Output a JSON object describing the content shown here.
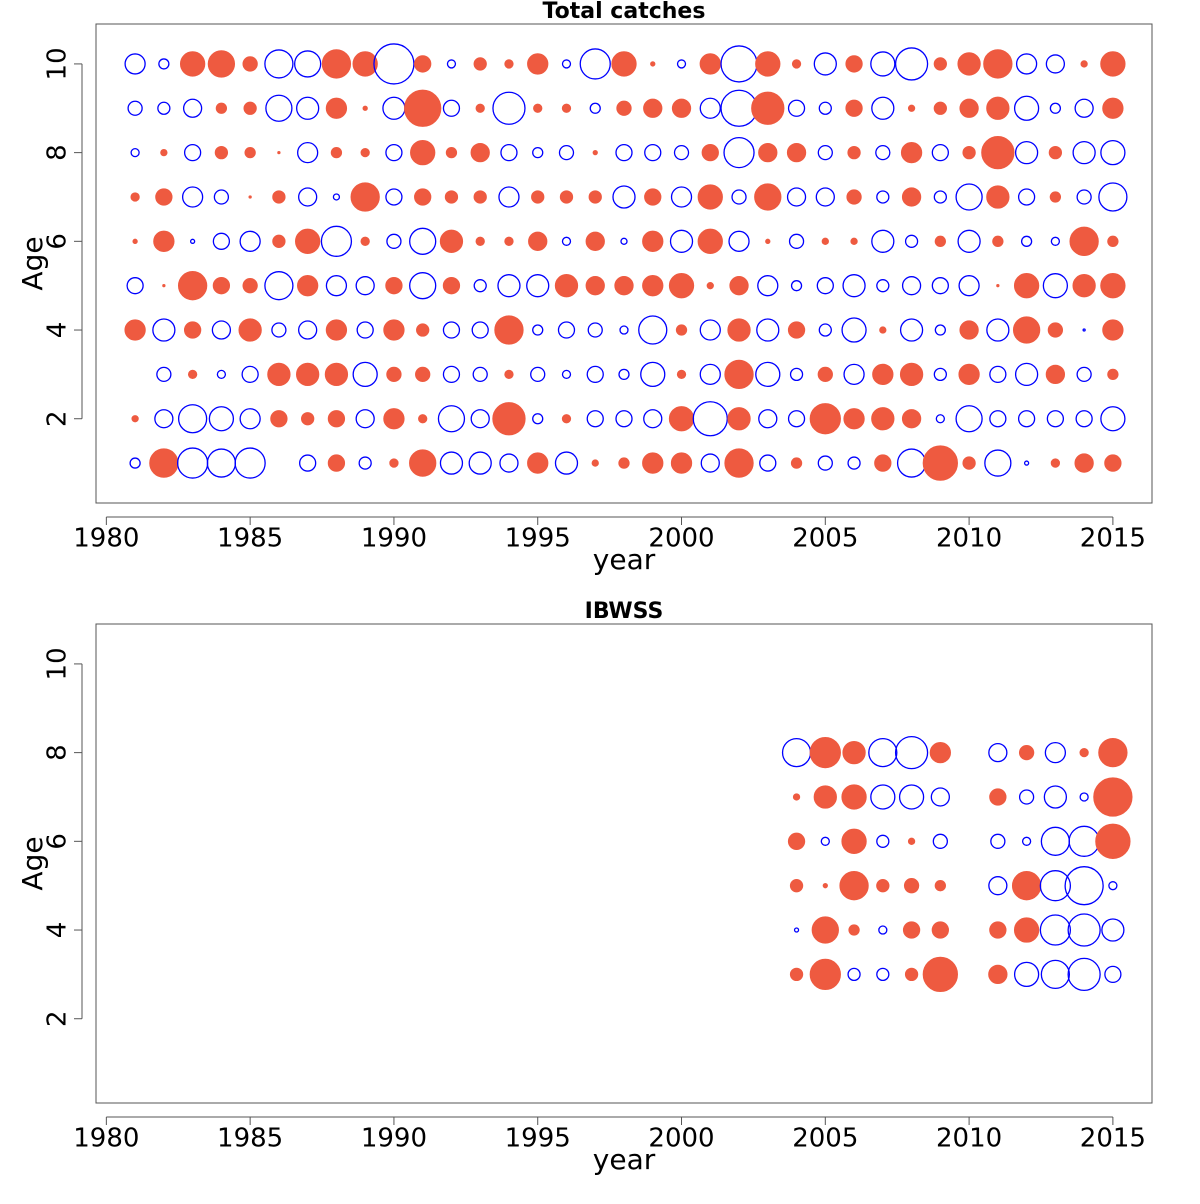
{
  "chart_data": [
    {
      "type": "bubble",
      "title": "Total catches",
      "xlabel": "year",
      "ylabel": "Age",
      "positive_color": "#ee5a40",
      "negative_color": "#0000ff",
      "xlim": [
        1979.64,
        2016.36
      ],
      "ylim": [
        0.1,
        10.9
      ],
      "xticks": [
        1980,
        1985,
        1990,
        1995,
        2000,
        2005,
        2010,
        2015
      ],
      "yticks": [
        2,
        4,
        6,
        8,
        10
      ],
      "x": [
        1981,
        1982,
        1983,
        1984,
        1985,
        1986,
        1987,
        1988,
        1989,
        1990,
        1991,
        1992,
        1993,
        1994,
        1995,
        1996,
        1997,
        1998,
        1999,
        2000,
        2001,
        2002,
        2003,
        2004,
        2005,
        2006,
        2007,
        2008,
        2009,
        2010,
        2011,
        2012,
        2013,
        2014,
        2015
      ],
      "y": [
        1,
        2,
        3,
        4,
        5,
        6,
        7,
        8,
        9,
        10
      ],
      "values": [
        [
          -0.5,
          1.4,
          -1.5,
          -1.4,
          -1.5,
          0,
          -0.8,
          0.8,
          -0.6,
          0.4,
          1.3,
          -1.1,
          -1.1,
          -0.9,
          1.0,
          -1.1,
          0.3,
          0.5,
          1.0,
          1.0,
          -0.9,
          1.4,
          -0.8,
          0.5,
          -0.7,
          -0.6,
          0.8,
          -1.4,
          1.7,
          0.6,
          -1.3,
          -0.2,
          0.4,
          0.9,
          0.8
        ],
        [
          0.3,
          -0.9,
          -1.4,
          -1.2,
          -1.0,
          0.8,
          0.6,
          0.8,
          -0.9,
          1.0,
          0.4,
          -1.3,
          -0.9,
          1.6,
          -0.5,
          0.4,
          -0.8,
          -0.8,
          -0.9,
          1.2,
          -1.7,
          1.1,
          -0.9,
          -0.8,
          1.5,
          1.0,
          1.1,
          0.9,
          -0.4,
          -1.3,
          -0.8,
          -0.8,
          -0.8,
          -0.8,
          -1.2
        ],
        [
          0,
          -0.7,
          0.4,
          -0.4,
          -0.8,
          1.1,
          1.1,
          1.1,
          -1.2,
          0.7,
          0.7,
          -0.8,
          -0.7,
          0.4,
          -0.7,
          -0.4,
          -0.8,
          -0.5,
          -1.2,
          0.4,
          -1.0,
          1.4,
          -1.2,
          -0.6,
          0.7,
          -1.0,
          1.0,
          1.1,
          -0.6,
          1.0,
          -0.8,
          -1.1,
          0.9,
          -0.7,
          0.5
        ],
        [
          1.0,
          -1.1,
          0.8,
          -0.9,
          1.1,
          -0.7,
          -0.9,
          1.0,
          -0.8,
          1.0,
          0.6,
          -0.8,
          -0.8,
          1.4,
          -0.5,
          -0.8,
          -0.7,
          -0.4,
          -1.4,
          0.5,
          -1.0,
          1.1,
          -1.1,
          0.8,
          -0.6,
          -1.2,
          0.3,
          -1.1,
          -0.5,
          0.9,
          -1.1,
          1.3,
          0.7,
          -0.1,
          1.0
        ],
        [
          -0.8,
          0.1,
          1.4,
          0.8,
          0.7,
          -1.4,
          1.0,
          -1.0,
          -0.9,
          0.8,
          -1.3,
          0.8,
          -0.6,
          -1.1,
          -1.1,
          1.1,
          0.9,
          0.9,
          1.0,
          1.2,
          0.3,
          0.9,
          -1.0,
          -0.5,
          -0.8,
          -1.1,
          -0.6,
          -0.9,
          -0.8,
          -1.0,
          0.1,
          1.2,
          -1.2,
          1.1,
          1.2
        ],
        [
          0.2,
          1.0,
          -0.2,
          -0.8,
          -1.0,
          0.6,
          1.2,
          -1.5,
          0.4,
          -0.7,
          -1.3,
          1.1,
          0.4,
          0.4,
          0.9,
          -0.4,
          0.9,
          -0.3,
          1.0,
          -1.1,
          1.2,
          -1.0,
          0.2,
          -0.7,
          0.3,
          0.3,
          -1.1,
          -0.6,
          0.5,
          -1.1,
          0.5,
          -0.5,
          -0.4,
          1.4,
          0.5
        ],
        [
          0.4,
          0.8,
          -1.0,
          -0.7,
          0.1,
          0.6,
          -0.9,
          -0.3,
          1.4,
          -0.8,
          0.8,
          0.6,
          0.6,
          -1.0,
          0.6,
          0.6,
          0.6,
          -1.1,
          0.8,
          -1.0,
          1.2,
          -0.7,
          1.3,
          -0.9,
          -0.9,
          0.7,
          -0.6,
          0.9,
          -0.6,
          -1.3,
          1.1,
          -0.8,
          0.5,
          -0.7,
          -1.4
        ],
        [
          -0.4,
          0.3,
          -0.8,
          0.6,
          0.5,
          0.1,
          -1.0,
          0.5,
          0.4,
          -0.8,
          1.2,
          0.5,
          0.9,
          -0.8,
          -0.5,
          -0.7,
          0.2,
          -0.8,
          -0.8,
          -0.7,
          0.8,
          -1.5,
          0.9,
          0.9,
          -0.7,
          0.6,
          -0.7,
          1.0,
          -0.8,
          0.6,
          1.6,
          -1.1,
          0.6,
          -1.1,
          -1.2
        ],
        [
          -0.7,
          -0.6,
          -0.9,
          0.5,
          0.6,
          -1.3,
          -1.1,
          1.0,
          0.2,
          -1.1,
          1.8,
          -0.8,
          0.4,
          -1.6,
          0.4,
          0.4,
          -0.5,
          0.7,
          0.9,
          0.9,
          -1.0,
          -1.8,
          1.6,
          -0.8,
          -0.6,
          0.8,
          -1.1,
          0.3,
          0.6,
          0.9,
          1.1,
          -1.2,
          -0.5,
          -0.9,
          1.0
        ],
        [
          -1.0,
          -0.5,
          1.2,
          1.3,
          0.7,
          -1.4,
          -1.3,
          1.4,
          1.2,
          -2.0,
          0.8,
          -0.4,
          0.6,
          0.4,
          1.0,
          -0.4,
          -1.5,
          1.2,
          0.2,
          -0.4,
          1.0,
          -1.8,
          1.2,
          0.4,
          -1.1,
          0.8,
          -1.2,
          -1.6,
          0.6,
          1.1,
          1.4,
          -1.0,
          -0.9,
          0.3,
          1.2
        ]
      ]
    },
    {
      "type": "bubble",
      "title": "IBWSS",
      "xlabel": "year",
      "ylabel": "Age",
      "positive_color": "#ee5a40",
      "negative_color": "#0000ff",
      "xlim": [
        1979.64,
        2016.36
      ],
      "ylim": [
        0.1,
        10.9
      ],
      "xticks": [
        1980,
        1985,
        1990,
        1995,
        2000,
        2005,
        2010,
        2015
      ],
      "yticks": [
        2,
        4,
        6,
        8,
        10
      ],
      "x": [
        2004,
        2005,
        2006,
        2007,
        2008,
        2009,
        2011,
        2012,
        2013,
        2014,
        2015
      ],
      "y": [
        3,
        4,
        5,
        6,
        7,
        8
      ],
      "values": [
        [
          0.6,
          1.5,
          -0.6,
          -0.6,
          0.6,
          1.7,
          0.9,
          -1.2,
          -1.4,
          -1.6,
          -0.8
        ],
        [
          -0.2,
          1.3,
          0.5,
          -0.4,
          0.8,
          0.8,
          0.8,
          1.2,
          -1.5,
          -1.6,
          -1.1
        ],
        [
          0.6,
          0.2,
          1.4,
          0.6,
          0.7,
          0.5,
          -0.9,
          1.4,
          -1.5,
          -1.9,
          -0.4
        ],
        [
          0.8,
          -0.4,
          1.2,
          -0.6,
          0.3,
          -0.7,
          -0.7,
          -0.4,
          -1.4,
          -1.5,
          1.7
        ],
        [
          0.3,
          1.1,
          1.2,
          -1.2,
          -1.2,
          -0.9,
          0.8,
          -0.7,
          -1.1,
          -0.4,
          1.9
        ],
        [
          -1.4,
          1.5,
          1.1,
          -1.4,
          -1.6,
          1.0,
          -0.9,
          0.7,
          -1.0,
          0.4,
          1.4
        ]
      ]
    }
  ]
}
